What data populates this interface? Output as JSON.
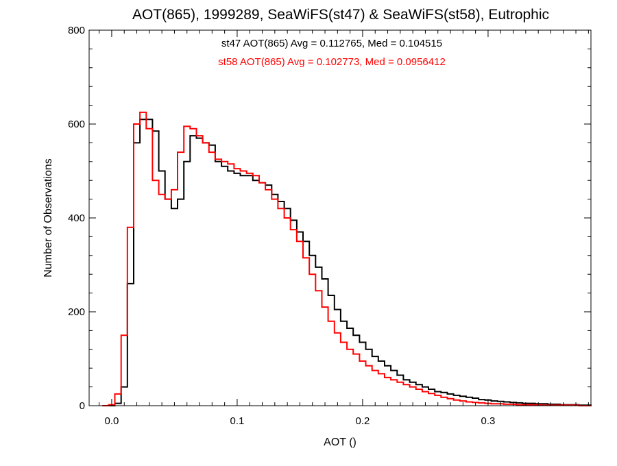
{
  "chart_data": {
    "type": "line",
    "title": "AOT(865), 1999289, SeaWiFS(st47) & SeaWiFS(st58), Eutrophic",
    "xlabel": "AOT ()",
    "ylabel": "Number of Observations",
    "xlim": [
      -0.018,
      0.382
    ],
    "ylim": [
      0,
      800
    ],
    "x_ticks": [
      0.0,
      0.1,
      0.2,
      0.3
    ],
    "x_tick_labels": [
      "0.0",
      "0.1",
      "0.2",
      "0.3"
    ],
    "y_ticks": [
      0,
      200,
      400,
      600,
      800
    ],
    "y_tick_labels": [
      "0",
      "200",
      "400",
      "600",
      "800"
    ],
    "grid": false,
    "legend_position": "top-center",
    "annotations": [
      {
        "text": "st47 AOT(865) Avg = 0.112765, Med = 0.104515",
        "color": "#000000"
      },
      {
        "text": "st58 AOT(865) Avg = 0.102773, Med = 0.0956412",
        "color": "#ff0000"
      }
    ],
    "series": [
      {
        "name": "st47",
        "color": "#000000",
        "step": "histogram",
        "x": [
          0.0,
          0.005,
          0.01,
          0.015,
          0.02,
          0.025,
          0.03,
          0.035,
          0.04,
          0.045,
          0.05,
          0.055,
          0.06,
          0.065,
          0.07,
          0.075,
          0.08,
          0.085,
          0.09,
          0.095,
          0.1,
          0.105,
          0.11,
          0.115,
          0.12,
          0.125,
          0.13,
          0.135,
          0.14,
          0.145,
          0.15,
          0.155,
          0.16,
          0.165,
          0.17,
          0.175,
          0.18,
          0.185,
          0.19,
          0.195,
          0.2,
          0.205,
          0.21,
          0.215,
          0.22,
          0.225,
          0.23,
          0.235,
          0.24,
          0.245,
          0.25,
          0.255,
          0.26,
          0.265,
          0.27,
          0.275,
          0.28,
          0.285,
          0.29,
          0.295,
          0.3,
          0.305,
          0.31,
          0.315,
          0.32,
          0.325,
          0.33,
          0.335,
          0.34,
          0.345,
          0.35,
          0.355,
          0.36,
          0.365,
          0.37,
          0.375,
          0.38
        ],
        "values": [
          0,
          5,
          40,
          260,
          560,
          610,
          610,
          585,
          500,
          440,
          420,
          440,
          520,
          575,
          570,
          560,
          555,
          520,
          510,
          500,
          495,
          490,
          490,
          480,
          475,
          470,
          450,
          435,
          420,
          395,
          370,
          350,
          320,
          295,
          270,
          235,
          205,
          180,
          165,
          150,
          135,
          120,
          105,
          95,
          85,
          75,
          65,
          55,
          50,
          45,
          40,
          35,
          30,
          28,
          25,
          22,
          20,
          18,
          16,
          13,
          12,
          10,
          9,
          8,
          7,
          6,
          5,
          5,
          4,
          4,
          3,
          3,
          2,
          2,
          2,
          1,
          1
        ]
      },
      {
        "name": "st58",
        "color": "#ff0000",
        "step": "histogram",
        "x": [
          -0.005,
          0.0,
          0.005,
          0.01,
          0.015,
          0.02,
          0.025,
          0.03,
          0.035,
          0.04,
          0.045,
          0.05,
          0.055,
          0.06,
          0.065,
          0.07,
          0.075,
          0.08,
          0.085,
          0.09,
          0.095,
          0.1,
          0.105,
          0.11,
          0.115,
          0.12,
          0.125,
          0.13,
          0.135,
          0.14,
          0.145,
          0.15,
          0.155,
          0.16,
          0.165,
          0.17,
          0.175,
          0.18,
          0.185,
          0.19,
          0.195,
          0.2,
          0.205,
          0.21,
          0.215,
          0.22,
          0.225,
          0.23,
          0.235,
          0.24,
          0.245,
          0.25,
          0.255,
          0.26,
          0.265,
          0.27,
          0.275,
          0.28,
          0.285,
          0.29,
          0.295,
          0.3,
          0.305,
          0.31,
          0.315,
          0.32,
          0.325,
          0.33,
          0.335,
          0.34,
          0.345,
          0.35,
          0.355,
          0.36,
          0.365,
          0.37,
          0.375,
          0.38
        ],
        "values": [
          0,
          2,
          25,
          150,
          380,
          600,
          625,
          590,
          480,
          450,
          440,
          460,
          540,
          595,
          590,
          575,
          560,
          540,
          525,
          520,
          515,
          505,
          500,
          495,
          490,
          475,
          460,
          440,
          420,
          400,
          375,
          350,
          315,
          280,
          245,
          210,
          180,
          155,
          135,
          120,
          110,
          95,
          85,
          75,
          68,
          60,
          55,
          50,
          45,
          40,
          35,
          30,
          26,
          22,
          18,
          15,
          12,
          10,
          8,
          7,
          6,
          5,
          4,
          4,
          3,
          3,
          2,
          2,
          2,
          2,
          1,
          1,
          1,
          1,
          1,
          1,
          0,
          0
        ]
      }
    ]
  }
}
